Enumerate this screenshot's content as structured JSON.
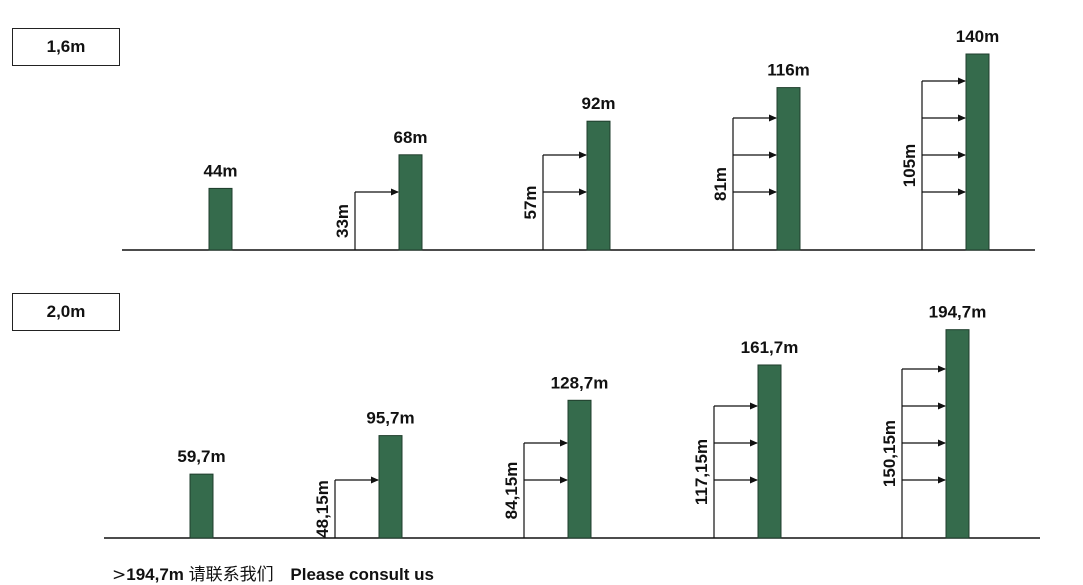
{
  "colors": {
    "pole": "#356b4c",
    "pole_edge": "#1f3d2c",
    "line": "#111111"
  },
  "groups": [
    {
      "label": "1,6m",
      "columns": [
        {
          "height_label": "44m",
          "height": 44,
          "spacing_label": "",
          "arrows": 0
        },
        {
          "height_label": "68m",
          "height": 68,
          "spacing_label": "33m",
          "arrows": 1
        },
        {
          "height_label": "92m",
          "height": 92,
          "spacing_label": "57m",
          "arrows": 2
        },
        {
          "height_label": "116m",
          "height": 116,
          "spacing_label": "81m",
          "arrows": 3
        },
        {
          "height_label": "140m",
          "height": 140,
          "spacing_label": "105m",
          "arrows": 4
        }
      ]
    },
    {
      "label": "2,0m",
      "columns": [
        {
          "height_label": "59,7m",
          "height": 59.7,
          "spacing_label": "",
          "arrows": 0
        },
        {
          "height_label": "95,7m",
          "height": 95.7,
          "spacing_label": "48,15m",
          "arrows": 1
        },
        {
          "height_label": "128,7m",
          "height": 128.7,
          "spacing_label": "84,15m",
          "arrows": 2
        },
        {
          "height_label": "161,7m",
          "height": 161.7,
          "spacing_label": "117,15m",
          "arrows": 3
        },
        {
          "height_label": "194,7m",
          "height": 194.7,
          "spacing_label": "150,15m",
          "arrows": 4
        }
      ]
    }
  ],
  "footer": {
    "symbol": ">",
    "value": "194,7m",
    "chinese": "请联系我们",
    "english": "Please consult us"
  }
}
